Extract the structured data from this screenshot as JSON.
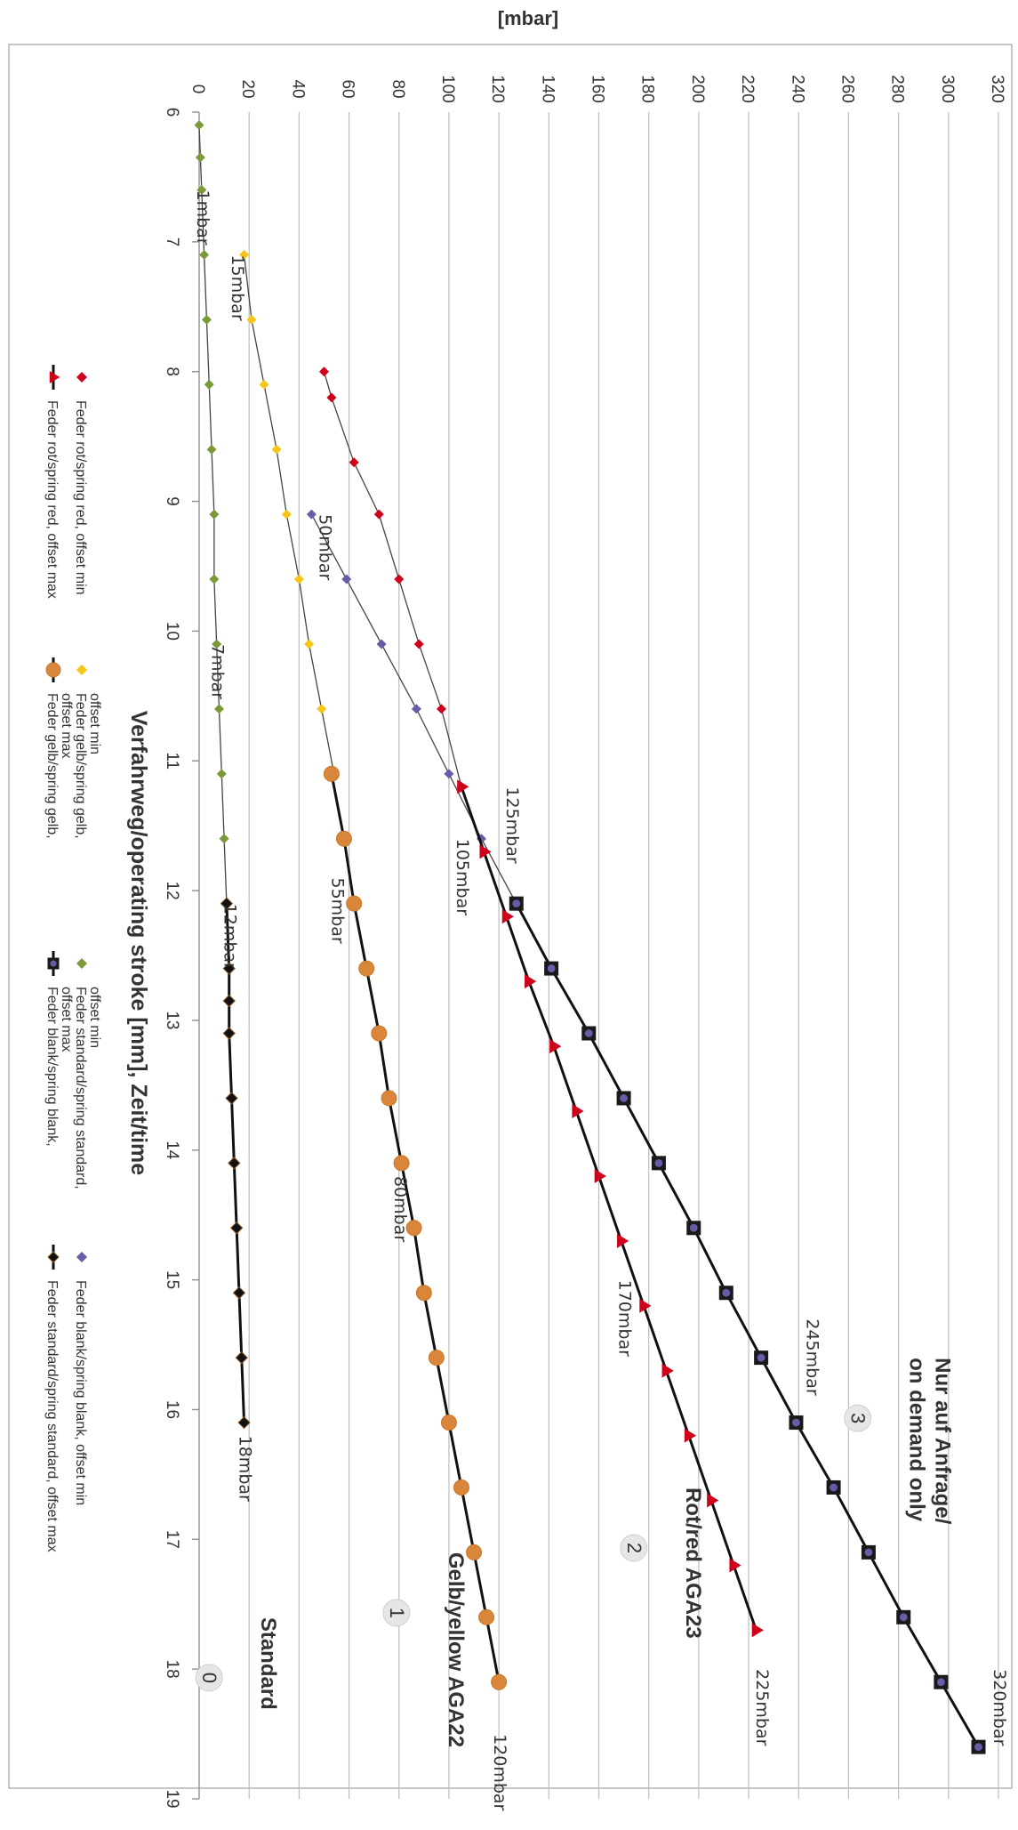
{
  "chart_data": {
    "type": "line",
    "unit_title": "[mbar]",
    "xlabel": "Verfahrweg/operating stroke [mm], Zeit/time",
    "xlim": [
      6,
      19
    ],
    "ylim": [
      0,
      320
    ],
    "x_ticks": [
      "6",
      "7",
      "8",
      "9",
      "10",
      "11",
      "12",
      "13",
      "14",
      "15",
      "16",
      "17",
      "18",
      "19"
    ],
    "y_ticks": [
      "0",
      "20",
      "40",
      "60",
      "80",
      "100",
      "120",
      "140",
      "160",
      "180",
      "200",
      "220",
      "240",
      "260",
      "280",
      "300",
      "320"
    ],
    "grid": true,
    "series": [
      {
        "name": "Feder rot/spring red, offset min",
        "color": "#d0021b",
        "marker": "diamond",
        "line": true,
        "thick": false,
        "legend_lines": 1,
        "points": [
          [
            8.0,
            50
          ],
          [
            8.2,
            53
          ],
          [
            8.7,
            62
          ],
          [
            9.1,
            72
          ],
          [
            9.6,
            80
          ],
          [
            10.1,
            88
          ],
          [
            10.6,
            97
          ],
          [
            11.2,
            105
          ]
        ]
      },
      {
        "name": "Feder gelb/spring gelb, offset min",
        "color": "#f5c518",
        "marker": "diamond",
        "line": true,
        "thick": false,
        "legend_lines": 2,
        "points": [
          [
            7.1,
            18
          ],
          [
            7.6,
            21
          ],
          [
            8.1,
            26
          ],
          [
            8.6,
            31
          ],
          [
            9.1,
            35
          ],
          [
            9.6,
            40
          ],
          [
            10.1,
            44
          ],
          [
            10.6,
            49
          ],
          [
            11.1,
            54
          ]
        ]
      },
      {
        "name": "Feder standard/spring standard, offset min",
        "color": "#7a9a3a",
        "marker": "diamond",
        "line": true,
        "thick": false,
        "legend_lines": 2,
        "points": [
          [
            6.1,
            0
          ],
          [
            6.35,
            0.5
          ],
          [
            6.6,
            1
          ],
          [
            7.1,
            2
          ],
          [
            7.6,
            3
          ],
          [
            8.1,
            4
          ],
          [
            8.6,
            5
          ],
          [
            9.1,
            6
          ],
          [
            9.6,
            6
          ],
          [
            10.1,
            7
          ],
          [
            10.6,
            8
          ],
          [
            11.1,
            9
          ],
          [
            11.6,
            10
          ],
          [
            12.1,
            11
          ]
        ]
      },
      {
        "name": "Feder blank/spring blank, offset min",
        "color": "#6a5aa8",
        "marker": "diamond",
        "line": true,
        "thick": false,
        "legend_lines": 1,
        "points": [
          [
            9.1,
            45
          ],
          [
            9.6,
            59
          ],
          [
            10.1,
            73
          ],
          [
            10.6,
            87
          ],
          [
            11.1,
            100
          ],
          [
            11.6,
            113
          ],
          [
            12.1,
            127
          ]
        ]
      },
      {
        "name": "Feder rot/spring red, offset max",
        "color": "#d0021b",
        "marker": "triangle",
        "line": true,
        "thick": true,
        "legend_lines": 1,
        "points": [
          [
            11.2,
            105
          ],
          [
            11.7,
            114
          ],
          [
            12.2,
            123
          ],
          [
            12.7,
            132
          ],
          [
            13.2,
            142
          ],
          [
            13.7,
            151
          ],
          [
            14.2,
            160
          ],
          [
            14.7,
            169
          ],
          [
            15.2,
            178
          ],
          [
            15.7,
            187
          ],
          [
            16.2,
            196
          ],
          [
            16.7,
            205
          ],
          [
            17.2,
            214
          ],
          [
            17.7,
            223
          ]
        ]
      },
      {
        "name": "Feder gelb/spring gelb, offset max",
        "color": "#d9863a",
        "marker": "circle",
        "line": true,
        "thick": true,
        "legend_lines": 2,
        "points": [
          [
            11.1,
            53
          ],
          [
            11.6,
            58
          ],
          [
            12.1,
            62
          ],
          [
            12.6,
            67
          ],
          [
            13.1,
            72
          ],
          [
            13.6,
            76
          ],
          [
            14.1,
            81
          ],
          [
            14.6,
            86
          ],
          [
            15.1,
            90
          ],
          [
            15.6,
            95
          ],
          [
            16.1,
            100
          ],
          [
            16.6,
            105
          ],
          [
            17.1,
            110
          ],
          [
            17.6,
            115
          ],
          [
            18.1,
            120
          ]
        ]
      },
      {
        "name": "Feder blank/spring blank, offset max",
        "color": "#1a1a1a",
        "marker": "square",
        "line": true,
        "thick": true,
        "legend_lines": 2,
        "points": [
          [
            12.1,
            127
          ],
          [
            12.6,
            141
          ],
          [
            13.1,
            156
          ],
          [
            13.6,
            170
          ],
          [
            14.1,
            184
          ],
          [
            14.6,
            198
          ],
          [
            15.1,
            211
          ],
          [
            15.6,
            225
          ],
          [
            16.1,
            239
          ],
          [
            16.6,
            254
          ],
          [
            17.1,
            268
          ],
          [
            17.6,
            282
          ],
          [
            18.1,
            297
          ],
          [
            18.6,
            312
          ]
        ]
      },
      {
        "name": "Feder standard/spring standard, offset max",
        "color": "#111111",
        "marker": "diamond",
        "line": true,
        "thick": true,
        "legend_lines": 1,
        "points": [
          [
            12.1,
            11
          ],
          [
            12.6,
            12
          ],
          [
            12.85,
            12
          ],
          [
            13.1,
            12
          ],
          [
            13.6,
            13
          ],
          [
            14.1,
            14
          ],
          [
            14.6,
            15
          ],
          [
            15.1,
            16
          ],
          [
            15.6,
            17
          ],
          [
            16.1,
            18
          ]
        ]
      }
    ],
    "annotations": [
      {
        "text": "1mbar",
        "x": 6.6,
        "y": 1
      },
      {
        "text": "15mbar",
        "x": 7.1,
        "y": 15
      },
      {
        "text": "50mbar",
        "x": 9.1,
        "y": 50
      },
      {
        "text": "7mbar",
        "x": 10.1,
        "y": 7
      },
      {
        "text": "125mbar",
        "x": 11.2,
        "y": 125
      },
      {
        "text": "105mbar",
        "x": 11.6,
        "y": 105
      },
      {
        "text": "55mbar",
        "x": 11.9,
        "y": 55
      },
      {
        "text": "12mbar",
        "x": 12.1,
        "y": 12
      },
      {
        "text": "80mbar",
        "x": 14.2,
        "y": 80
      },
      {
        "text": "170mbar",
        "x": 15.0,
        "y": 170
      },
      {
        "text": "245mbar",
        "x": 15.3,
        "y": 245
      },
      {
        "text": "18mbar",
        "x": 16.2,
        "y": 18
      },
      {
        "text": "320mbar",
        "x": 18.0,
        "y": 320
      },
      {
        "text": "225mbar",
        "x": 18.0,
        "y": 225
      },
      {
        "text": "120mbar",
        "x": 18.5,
        "y": 120
      }
    ],
    "zones": [
      {
        "lines": [
          "Nur auf Anfrage/",
          "on demand only"
        ],
        "number": "3",
        "x": 15.6,
        "y": 290
      },
      {
        "lines": [
          "Rot/red AGA23"
        ],
        "number": "2",
        "x": 16.6,
        "y": 190
      },
      {
        "lines": [
          "Gelb/yellow AGA22"
        ],
        "number": "1",
        "x": 17.1,
        "y": 95
      },
      {
        "lines": [
          "Standard"
        ],
        "number": "0",
        "x": 17.6,
        "y": 20
      }
    ]
  }
}
